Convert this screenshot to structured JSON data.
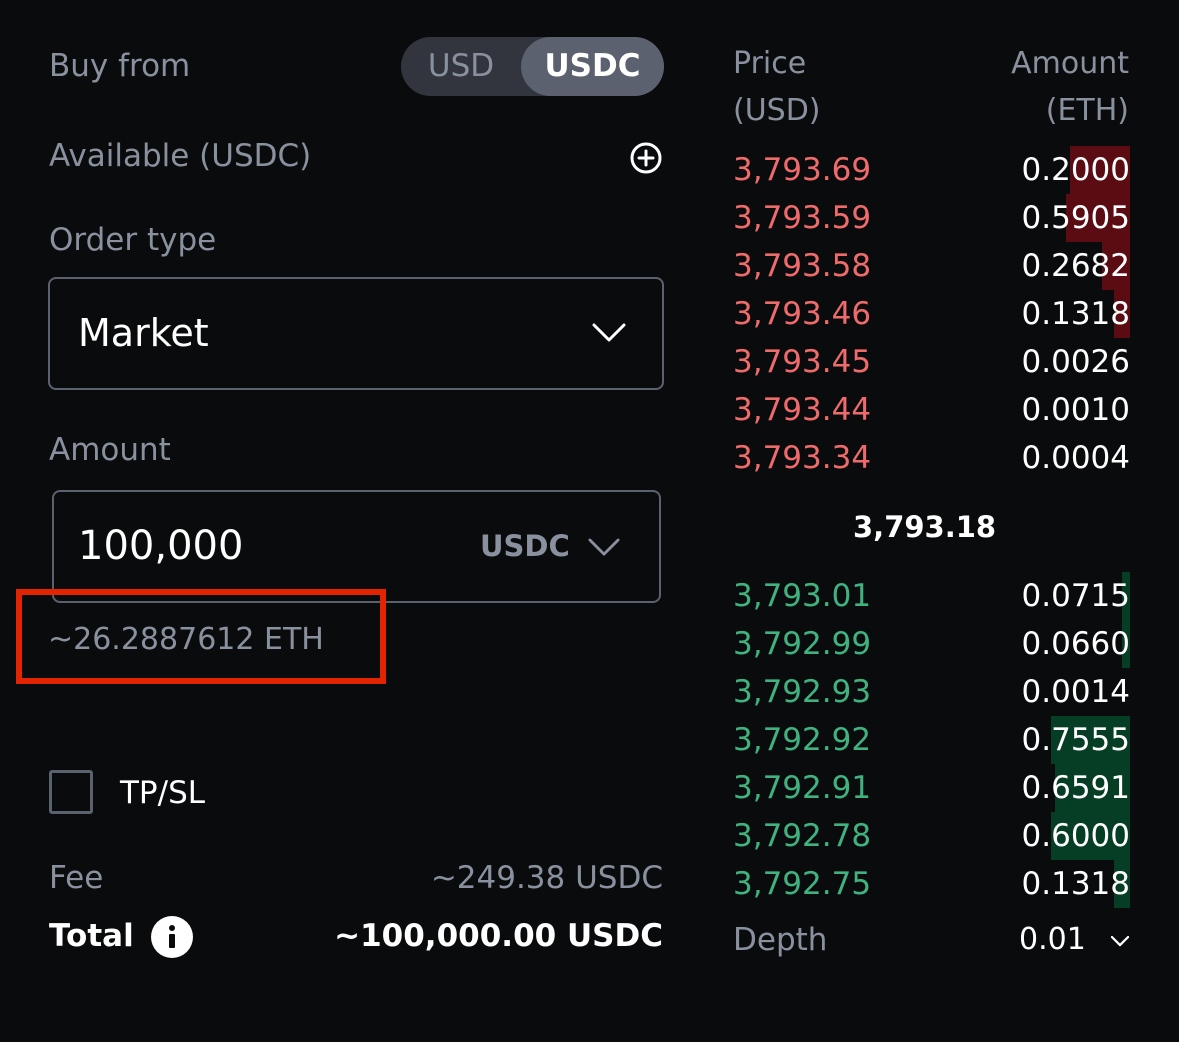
{
  "form": {
    "buy_from_label": "Buy from",
    "toggle": {
      "option_usd": "USD",
      "option_usdc": "USDC",
      "selected": "USDC"
    },
    "available_label": "Available (USDC)",
    "order_type_label": "Order type",
    "order_type_value": "Market",
    "amount_label": "Amount",
    "amount_value": "100,000",
    "amount_currency": "USDC",
    "eth_estimate": "~26.2887612 ETH",
    "tpsl_label": "TP/SL",
    "fee_label": "Fee",
    "fee_value": "~249.38 USDC",
    "total_label": "Total",
    "total_value": "~100,000.00 USDC"
  },
  "orderbook": {
    "price_header_line1": "Price",
    "price_header_line2": "(USD)",
    "amount_header_line1": "Amount",
    "amount_header_line2": "(ETH)",
    "asks": [
      {
        "price": "3,793.69",
        "amount": "0.2000",
        "depth": 0.15
      },
      {
        "price": "3,793.59",
        "amount": "0.5905",
        "depth": 0.16
      },
      {
        "price": "3,793.58",
        "amount": "0.2682",
        "depth": 0.07
      },
      {
        "price": "3,793.46",
        "amount": "0.1318",
        "depth": 0.04
      },
      {
        "price": "3,793.45",
        "amount": "0.0026",
        "depth": 0.0
      },
      {
        "price": "3,793.44",
        "amount": "0.0010",
        "depth": 0.0
      },
      {
        "price": "3,793.34",
        "amount": "0.0004",
        "depth": 0.0
      }
    ],
    "mid_price": "3,793.18",
    "bids": [
      {
        "price": "3,793.01",
        "amount": "0.0715",
        "depth": 0.02
      },
      {
        "price": "3,792.99",
        "amount": "0.0660",
        "depth": 0.02
      },
      {
        "price": "3,792.93",
        "amount": "0.0014",
        "depth": 0.0
      },
      {
        "price": "3,792.92",
        "amount": "0.7555",
        "depth": 0.2
      },
      {
        "price": "3,792.91",
        "amount": "0.6591",
        "depth": 0.19
      },
      {
        "price": "3,792.78",
        "amount": "0.6000",
        "depth": 0.2
      },
      {
        "price": "3,792.75",
        "amount": "0.1318",
        "depth": 0.04
      }
    ],
    "depth_label": "Depth",
    "depth_value": "0.01"
  },
  "icons": {
    "plus": "plus-circle-icon",
    "chevron": "chevron-down-icon",
    "info": "info-icon"
  }
}
